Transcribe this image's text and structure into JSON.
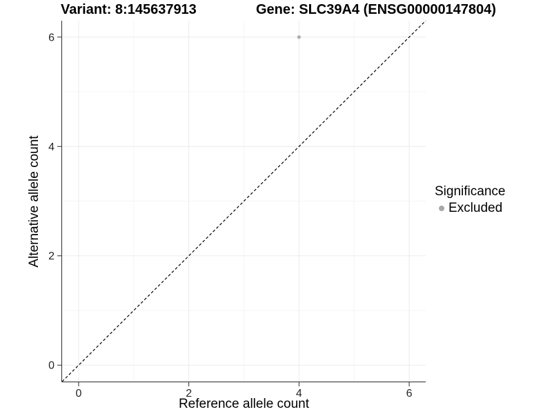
{
  "chart_data": {
    "type": "scatter",
    "title_left": "Variant: 8:145637913",
    "title_right": "Gene: SLC39A4 (ENSG00000147804)",
    "xlabel": "Reference allele count",
    "ylabel": "Alternative allele count",
    "xlim": [
      -0.3,
      6.3
    ],
    "ylim": [
      -0.3,
      6.3
    ],
    "x_ticks": [
      0,
      2,
      4,
      6
    ],
    "y_ticks": [
      0,
      2,
      4,
      6
    ],
    "x_minor_ticks": [
      1,
      3,
      5
    ],
    "y_minor_ticks": [
      1,
      3,
      5
    ],
    "grid": true,
    "reference_line": {
      "type": "identity",
      "style": "dashed",
      "color": "#000000"
    },
    "series": [
      {
        "name": "Excluded",
        "color": "#aeaeae",
        "points": [
          {
            "x": 4,
            "y": 6
          }
        ]
      }
    ],
    "legend": {
      "title": "Significance",
      "position": "right",
      "entries": [
        {
          "label": "Excluded",
          "color": "#a8a8a8"
        }
      ]
    },
    "style": {
      "grid_major_color": "#ebebeb",
      "grid_minor_color": "#f5f5f5",
      "axis_color": "#2b2b2b",
      "tick_label_color": "#262626",
      "background": "#ffffff"
    }
  }
}
